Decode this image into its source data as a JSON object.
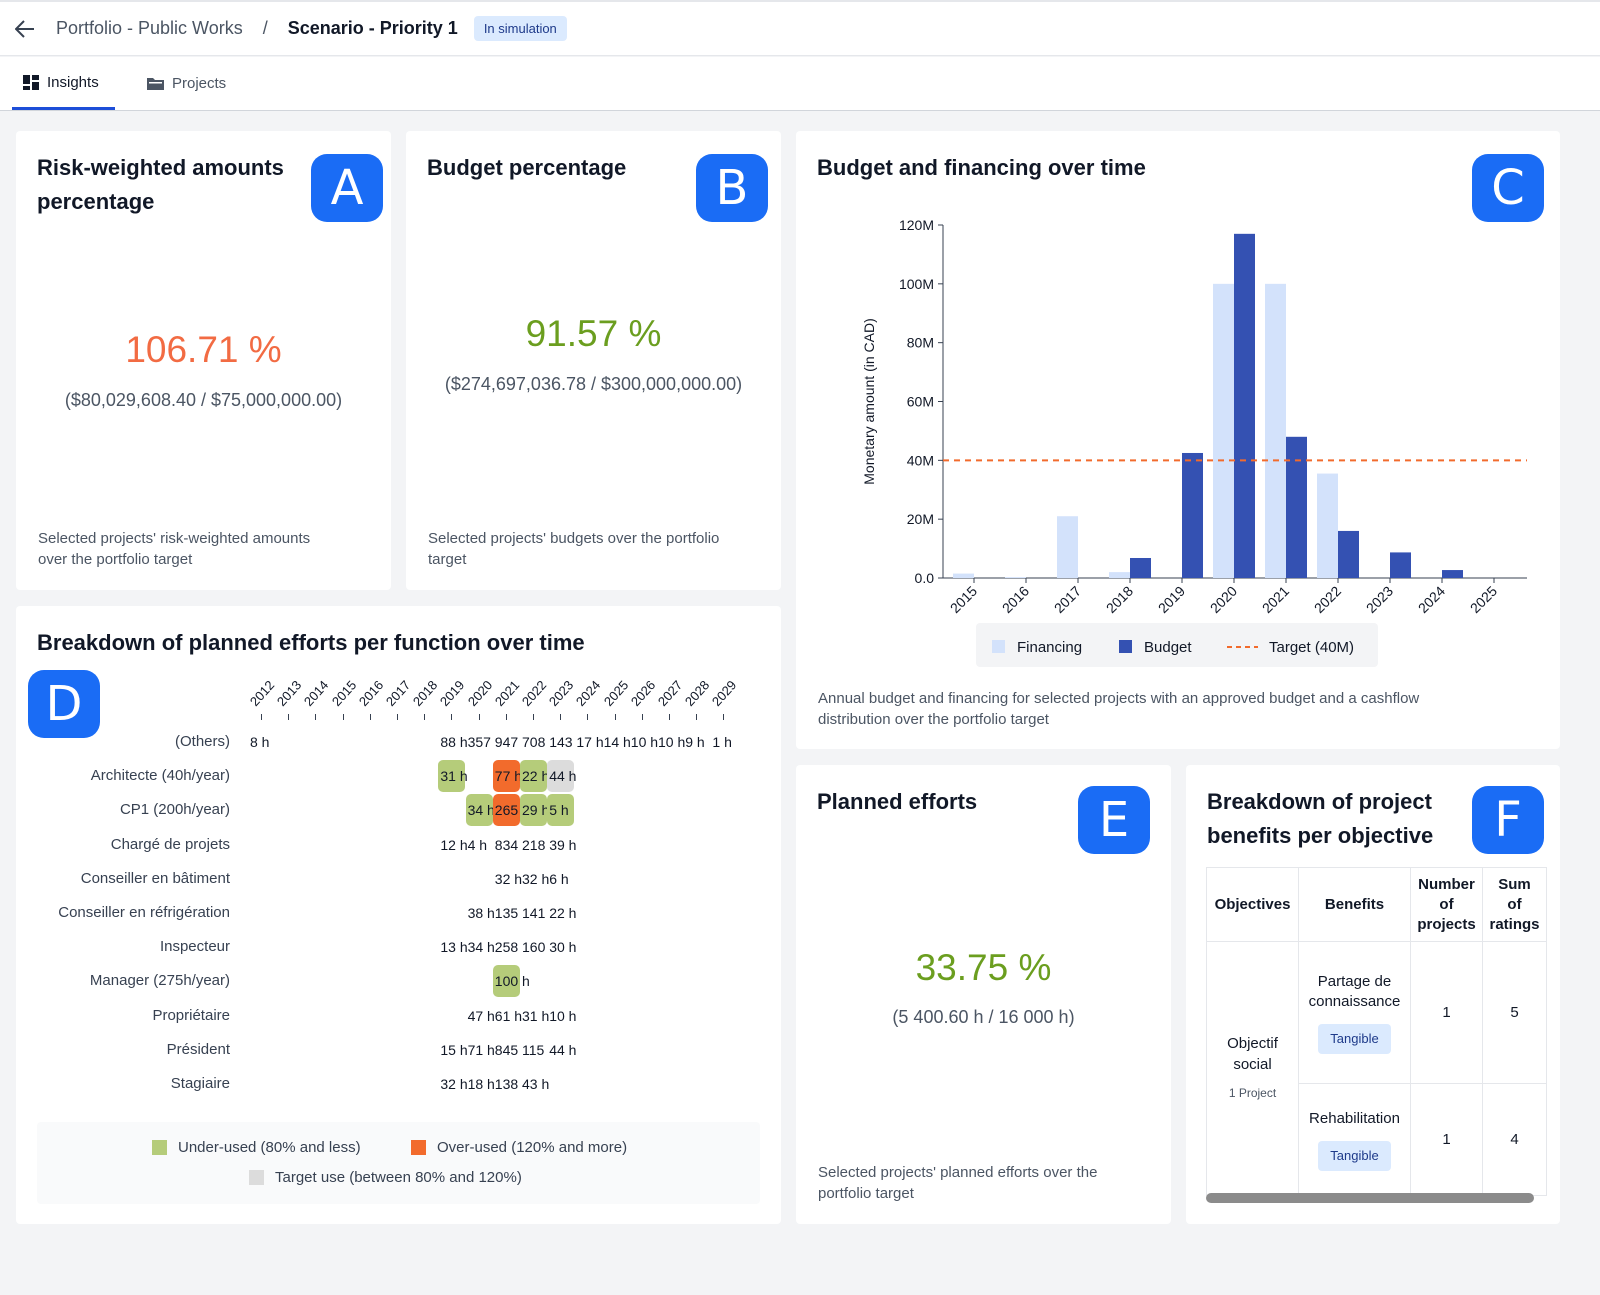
{
  "header": {
    "breadcrumb_portfolio": "Portfolio - Public Works",
    "separator": "/",
    "scenario": "Scenario - Priority 1",
    "status_badge": "In simulation"
  },
  "tabs": [
    {
      "label": "Insights",
      "icon": "dashboard-icon",
      "active": true
    },
    {
      "label": "Projects",
      "icon": "folder-icon",
      "active": false
    }
  ],
  "cards": {
    "a": {
      "letter": "A",
      "title_line1": "Risk-weighted amounts",
      "title_line2": "percentage",
      "value": "106.71 %",
      "detail": "($80,029,608.40 / $75,000,000.00)",
      "footer_line1": "Selected projects' risk-weighted amounts",
      "footer_line2": "over the portfolio target",
      "value_color": "#f26b43"
    },
    "b": {
      "letter": "B",
      "title": "Budget percentage",
      "value": "91.57 %",
      "detail": "($274,697,036.78 / $300,000,000.00)",
      "footer_line1": "Selected projects' budgets over the portfolio",
      "footer_line2": "target",
      "value_color": "#6b9e1f"
    },
    "c": {
      "letter": "C",
      "title": "Budget and financing over time",
      "footer_line1": "Annual budget and financing for selected projects with an approved budget and a cashflow",
      "footer_line2": "distribution over the portfolio target"
    },
    "d": {
      "letter": "D",
      "title": "Breakdown of planned efforts per function over time"
    },
    "e": {
      "letter": "E",
      "title": "Planned efforts",
      "value": "33.75 %",
      "detail": "(5 400.60 h / 16 000 h)",
      "footer_line1": "Selected projects' planned efforts over the",
      "footer_line2": "portfolio target",
      "value_color": "#6b9e1f"
    },
    "f": {
      "letter": "F",
      "title_line1": "Breakdown of project",
      "title_line2": "benefits per objective"
    }
  },
  "chart_data": {
    "type": "bar",
    "title": "",
    "ylabel": "Monetary amount (in CAD)",
    "xlabel": "",
    "categories": [
      "2015",
      "2016",
      "2017",
      "2018",
      "2019",
      "2020",
      "2021",
      "2022",
      "2023",
      "2024",
      "2025"
    ],
    "yticks": [
      "0.0",
      "20M",
      "40M",
      "60M",
      "80M",
      "100M",
      "120M"
    ],
    "ylim": [
      0,
      120
    ],
    "series": [
      {
        "name": "Financing",
        "color": "#d3e2fb",
        "values": [
          1.5,
          0.3,
          21,
          2,
          0,
          100,
          100,
          35.5,
          0,
          0,
          0
        ]
      },
      {
        "name": "Budget",
        "color": "#3451b2",
        "values": [
          0,
          0,
          0,
          6.8,
          42.5,
          117,
          48,
          16,
          8.7,
          2.7,
          0
        ]
      }
    ],
    "target": {
      "name": "Target (40M)",
      "value": 40,
      "color": "#f26b2c"
    },
    "legend_position": "bottom",
    "grid": false
  },
  "efforts": {
    "years": [
      "2012",
      "2013",
      "2014",
      "2015",
      "2016",
      "2017",
      "2018",
      "2019",
      "2020",
      "2021",
      "2022",
      "2023",
      "2024",
      "2025",
      "2026",
      "2027",
      "2028",
      "2029"
    ],
    "rows": [
      {
        "label": "(Others)",
        "cells": [
          {
            "col": 0,
            "text": "8 h"
          },
          {
            "col": 7,
            "text": "88 h"
          },
          {
            "col": 8,
            "text": "357"
          },
          {
            "col": 9,
            "text": "947"
          },
          {
            "col": 10,
            "text": "708"
          },
          {
            "col": 11,
            "text": "143"
          },
          {
            "col": 12,
            "text": "17 h"
          },
          {
            "col": 13,
            "text": "14 h"
          },
          {
            "col": 14,
            "text": "10 h"
          },
          {
            "col": 15,
            "text": "10 h"
          },
          {
            "col": 16,
            "text": "9 h"
          },
          {
            "col": 17,
            "text": "1 h"
          }
        ]
      },
      {
        "label": "Architecte (40h/year)",
        "cells": [
          {
            "col": 7,
            "text": "31 h",
            "status": "under"
          },
          {
            "col": 9,
            "text": "77 h",
            "status": "over"
          },
          {
            "col": 10,
            "text": "22 h",
            "status": "under"
          },
          {
            "col": 11,
            "text": "44 h",
            "status": "target"
          }
        ]
      },
      {
        "label": "CP1 (200h/year)",
        "cells": [
          {
            "col": 8,
            "text": "34 h",
            "status": "under"
          },
          {
            "col": 9,
            "text": "265",
            "status": "over"
          },
          {
            "col": 10,
            "text": "29 h",
            "status": "under"
          },
          {
            "col": 11,
            "text": "5 h",
            "status": "under"
          }
        ]
      },
      {
        "label": "Chargé de projets",
        "cells": [
          {
            "col": 7,
            "text": "12 h"
          },
          {
            "col": 8,
            "text": "4 h"
          },
          {
            "col": 9,
            "text": "834"
          },
          {
            "col": 10,
            "text": "218"
          },
          {
            "col": 11,
            "text": "39 h"
          }
        ]
      },
      {
        "label": "Conseiller en bâtiment",
        "cells": [
          {
            "col": 9,
            "text": "32 h"
          },
          {
            "col": 10,
            "text": "32 h"
          },
          {
            "col": 11,
            "text": "6 h"
          }
        ]
      },
      {
        "label": "Conseiller en réfrigération",
        "cells": [
          {
            "col": 8,
            "text": "38 h"
          },
          {
            "col": 9,
            "text": "135"
          },
          {
            "col": 10,
            "text": "141"
          },
          {
            "col": 11,
            "text": "22 h"
          }
        ]
      },
      {
        "label": "Inspecteur",
        "cells": [
          {
            "col": 7,
            "text": "13 h"
          },
          {
            "col": 8,
            "text": "34 h"
          },
          {
            "col": 9,
            "text": "258"
          },
          {
            "col": 10,
            "text": "160"
          },
          {
            "col": 11,
            "text": "30 h"
          }
        ]
      },
      {
        "label": "Manager (275h/year)",
        "cells": [
          {
            "col": 9,
            "text": "100 h",
            "status": "under"
          }
        ]
      },
      {
        "label": "Propriétaire",
        "cells": [
          {
            "col": 8,
            "text": "47 h"
          },
          {
            "col": 9,
            "text": "61 h"
          },
          {
            "col": 10,
            "text": "31 h"
          },
          {
            "col": 11,
            "text": "10 h"
          }
        ]
      },
      {
        "label": "Président",
        "cells": [
          {
            "col": 7,
            "text": "15 h"
          },
          {
            "col": 8,
            "text": "71 h"
          },
          {
            "col": 9,
            "text": "845"
          },
          {
            "col": 10,
            "text": "115"
          },
          {
            "col": 11,
            "text": "44 h"
          }
        ]
      },
      {
        "label": "Stagiaire",
        "cells": [
          {
            "col": 7,
            "text": "32 h"
          },
          {
            "col": 8,
            "text": "18 h"
          },
          {
            "col": 9,
            "text": "138"
          },
          {
            "col": 10,
            "text": "43 h"
          }
        ]
      }
    ],
    "legend": {
      "under": {
        "label": "Under-used (80% and less)",
        "color": "#b5cc7a"
      },
      "over": {
        "label": "Over-used (120% and more)",
        "color": "#f26b2c"
      },
      "target": {
        "label": "Target use (between 80% and 120%)",
        "color": "#dcdcdc"
      }
    }
  },
  "benefits_table": {
    "headers": {
      "objectives": "Objectives",
      "benefits": "Benefits",
      "num_l1": "Number",
      "num_l2": "of",
      "num_l3": "projects",
      "sum_l1": "Sum",
      "sum_l2": "of",
      "sum_l3": "ratings"
    },
    "objective_l1": "Objectif",
    "objective_l2": "social",
    "objective_sub": "1 Project",
    "rows": [
      {
        "benefit_l1": "Partage de",
        "benefit_l2": "connaissance",
        "tag": "Tangible",
        "num_projects": "1",
        "sum_ratings": "5"
      },
      {
        "benefit_l1": "Rehabilitation",
        "tag": "Tangible",
        "num_projects": "1",
        "sum_ratings": "4"
      }
    ]
  }
}
